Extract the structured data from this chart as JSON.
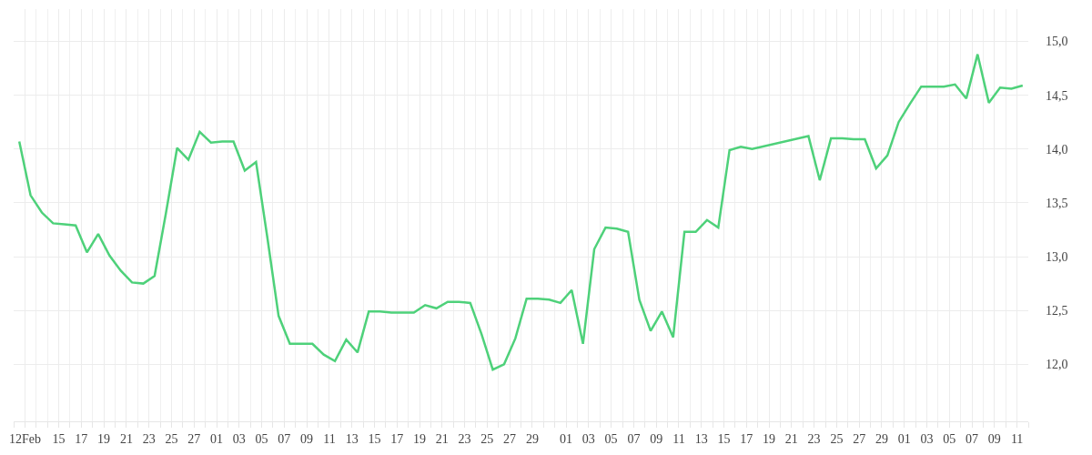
{
  "chart_data": {
    "type": "line",
    "color": "#4ed17a",
    "grid": true,
    "legend": false,
    "marker": "none",
    "line_style": "solid",
    "x": [
      "--02-11T12:00",
      "--02-12T12:00",
      "--02-13T12:00",
      "--02-14T12:00",
      "--02-15T12:00",
      "--02-16T12:00",
      "--02-17T12:00",
      "--02-18T12:00",
      "--02-19T12:00",
      "--02-20T12:00",
      "--02-21T12:00",
      "--02-22T12:00",
      "--02-23T12:00",
      "--02-24T12:00",
      "--02-25T12:00",
      "--02-26T12:00",
      "--02-27T12:00",
      "--02-28T12:00",
      "--03-01T12:00",
      "--03-02T12:00",
      "--03-03T12:00",
      "--03-04T12:00",
      "--03-05T12:00",
      "--03-06T12:00",
      "--03-07T12:00",
      "--03-08T12:00",
      "--03-09T12:00",
      "--03-10T12:00",
      "--03-11T12:00",
      "--03-12T12:00",
      "--03-13T12:00",
      "--03-14T12:00",
      "--03-15T12:00",
      "--03-16T12:00",
      "--03-17T12:00",
      "--03-18T12:00",
      "--03-19T12:00",
      "--03-20T12:00",
      "--03-21T12:00",
      "--03-22T12:00",
      "--03-23T12:00",
      "--03-24T12:00",
      "--03-25T12:00",
      "--03-26T12:00",
      "--03-27T12:00",
      "--03-28T12:00",
      "--03-29T12:00",
      "--03-30T12:00",
      "--03-31T12:00",
      "--04-01T12:00",
      "--04-02T12:00",
      "--04-03T12:00",
      "--04-04T12:00",
      "--04-05T12:00",
      "--04-06T12:00",
      "--04-07T12:00",
      "--04-08T12:00",
      "--04-09T12:00",
      "--04-10T12:00",
      "--04-11T12:00",
      "--04-12T12:00",
      "--04-13T12:00",
      "--04-14T12:00",
      "--04-15T12:00",
      "--04-16T12:00",
      "--04-17T12:00",
      "--04-22T12:00",
      "--04-23T12:00",
      "--04-24T12:00",
      "--04-25T12:00",
      "--04-26T12:00",
      "--04-27T12:00",
      "--04-28T12:00",
      "--04-29T12:00",
      "--04-30T12:00",
      "--05-01T12:00",
      "--05-02T12:00",
      "--05-03T12:00",
      "--05-04T12:00",
      "--05-05T12:00",
      "--05-06T12:00",
      "--05-07T12:00",
      "--05-08T12:00",
      "--05-09T12:00",
      "--05-10T12:00",
      "--05-11T12:00"
    ],
    "values": [
      14.07,
      13.57,
      13.41,
      13.31,
      13.3,
      13.29,
      13.04,
      13.21,
      13.01,
      12.87,
      12.76,
      12.75,
      12.82,
      13.4,
      14.01,
      13.9,
      14.16,
      14.06,
      14.07,
      14.07,
      13.8,
      13.88,
      13.18,
      12.45,
      12.19,
      12.19,
      12.19,
      12.09,
      12.03,
      12.23,
      12.11,
      12.49,
      12.49,
      12.48,
      12.48,
      12.48,
      12.55,
      12.52,
      12.58,
      12.58,
      12.57,
      12.28,
      11.95,
      12.0,
      12.24,
      12.61,
      12.61,
      12.6,
      12.57,
      12.69,
      12.19,
      13.07,
      13.27,
      13.26,
      13.23,
      12.6,
      12.31,
      12.49,
      12.25,
      13.23,
      13.23,
      13.34,
      13.27,
      13.99,
      14.02,
      14.0,
      14.12,
      13.71,
      14.1,
      14.1,
      14.09,
      14.09,
      13.82,
      13.94,
      14.25,
      14.42,
      14.58,
      14.58,
      14.58,
      14.6,
      14.47,
      14.88,
      14.43,
      14.57,
      14.56,
      14.59
    ],
    "xlim": [
      "--02-11",
      "--05-12"
    ],
    "xticks": [
      {
        "value": "--02-12",
        "label": "12Feb"
      },
      {
        "value": "--02-15",
        "label": "15"
      },
      {
        "value": "--02-17",
        "label": "17"
      },
      {
        "value": "--02-19",
        "label": "19"
      },
      {
        "value": "--02-21",
        "label": "21"
      },
      {
        "value": "--02-23",
        "label": "23"
      },
      {
        "value": "--02-25",
        "label": "25"
      },
      {
        "value": "--02-27",
        "label": "27"
      },
      {
        "value": "--03-01",
        "label": "01"
      },
      {
        "value": "--03-03",
        "label": "03"
      },
      {
        "value": "--03-05",
        "label": "05"
      },
      {
        "value": "--03-07",
        "label": "07"
      },
      {
        "value": "--03-09",
        "label": "09"
      },
      {
        "value": "--03-11",
        "label": "11"
      },
      {
        "value": "--03-13",
        "label": "13"
      },
      {
        "value": "--03-15",
        "label": "15"
      },
      {
        "value": "--03-17",
        "label": "17"
      },
      {
        "value": "--03-19",
        "label": "19"
      },
      {
        "value": "--03-21",
        "label": "21"
      },
      {
        "value": "--03-23",
        "label": "23"
      },
      {
        "value": "--03-25",
        "label": "25"
      },
      {
        "value": "--03-27",
        "label": "27"
      },
      {
        "value": "--03-29",
        "label": "29"
      },
      {
        "value": "--04-01",
        "label": "01"
      },
      {
        "value": "--04-03",
        "label": "03"
      },
      {
        "value": "--04-05",
        "label": "05"
      },
      {
        "value": "--04-07",
        "label": "07"
      },
      {
        "value": "--04-09",
        "label": "09"
      },
      {
        "value": "--04-11",
        "label": "11"
      },
      {
        "value": "--04-13",
        "label": "13"
      },
      {
        "value": "--04-15",
        "label": "15"
      },
      {
        "value": "--04-17",
        "label": "17"
      },
      {
        "value": "--04-19",
        "label": "19"
      },
      {
        "value": "--04-21",
        "label": "21"
      },
      {
        "value": "--04-23",
        "label": "23"
      },
      {
        "value": "--04-25",
        "label": "25"
      },
      {
        "value": "--04-27",
        "label": "27"
      },
      {
        "value": "--04-29",
        "label": "29"
      },
      {
        "value": "--05-01",
        "label": "01"
      },
      {
        "value": "--05-03",
        "label": "03"
      },
      {
        "value": "--05-05",
        "label": "05"
      },
      {
        "value": "--05-07",
        "label": "07"
      },
      {
        "value": "--05-09",
        "label": "09"
      },
      {
        "value": "--05-11",
        "label": "11"
      }
    ],
    "ylim": [
      11.47,
      15.3
    ],
    "yticks": [
      {
        "value": 12,
        "label": "12,0"
      },
      {
        "value": 12.5,
        "label": "12,5"
      },
      {
        "value": 13,
        "label": "13,0"
      },
      {
        "value": 13.5,
        "label": "13,5"
      },
      {
        "value": 14,
        "label": "14,0"
      },
      {
        "value": 14.5,
        "label": "14,5"
      },
      {
        "value": 15,
        "label": "15,0"
      }
    ]
  }
}
